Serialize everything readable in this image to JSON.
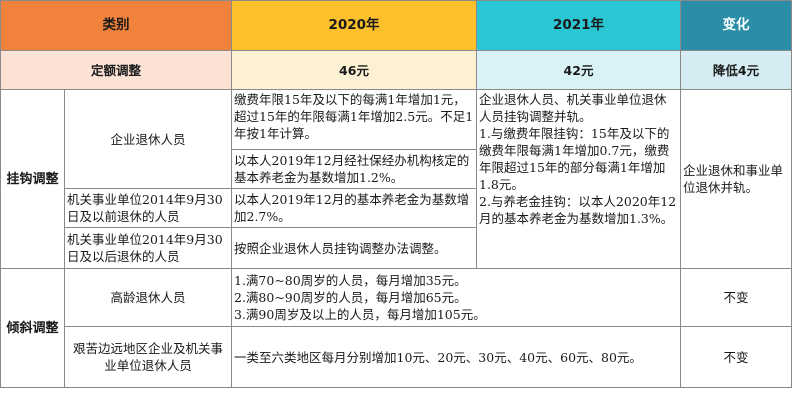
{
  "header": {
    "category": "类别",
    "y2020": "2020年",
    "y2021": "2021年",
    "change": "变化"
  },
  "quota": {
    "label": "定额调整",
    "y2020": "46元",
    "y2021": "42元",
    "change": "降低4元"
  },
  "linked": {
    "group": "挂钩调整",
    "rows": [
      {
        "sub": "企业退休人员",
        "y2020": "缴费年限15年及以下的每满1年增加1元，超过15年的年限每满1年增加2.5元。不足1年按1年计算。"
      },
      {
        "sub": "",
        "y2020": "以本人2019年12月经社保经办机构核定的基本养老金为基数增加1.2%。"
      },
      {
        "sub": "机关事业单位2014年9月30日及以前退休的人员",
        "y2020": "以本人2019年12月的基本养老金为基数增加2.7%。"
      },
      {
        "sub": "机关事业单位2014年9月30日及以后退休的人员",
        "y2020": "按照企业退休人员挂钩调整办法调整。"
      }
    ],
    "y2021": "企业退休人员、机关事业单位退休人员挂钩调整并轨。\n1.与缴费年限挂钩：15年及以下的缴费年限每满1年增加0.7元，缴费年限超过15年的部分每满1年增加1.8元。\n2.与养老金挂钩：以本人2020年12月的基本养老金为基数增加1.3%。",
    "change": "企业退休和事业单位退休并轨。"
  },
  "tilted": {
    "group": "倾斜调整",
    "rows": [
      {
        "sub": "高龄退休人员",
        "content": "1.满70~80周岁的人员，每月增加35元。\n2.满80~90周岁的人员，每月增加65元。\n3.满90周岁及以上的人员，每月增加105元。",
        "change": "不变"
      },
      {
        "sub": "艰苦边远地区企业及机关事业单位退休人员",
        "content": "一类至六类地区每月分别增加10元、20元、30元、40元、60元、80元。",
        "change": "不变"
      }
    ]
  },
  "colors": {
    "header_category": "#f0823c",
    "header_2020": "#fcc02c",
    "header_2021": "#2bc6d3",
    "header_change": "#2b8ea8",
    "quota_category": "#fbe2d4",
    "quota_2020": "#fdf1d4",
    "quota_2021": "#d8f2f5",
    "quota_change": "#d4ecf2",
    "border": "#8a8a8a"
  }
}
